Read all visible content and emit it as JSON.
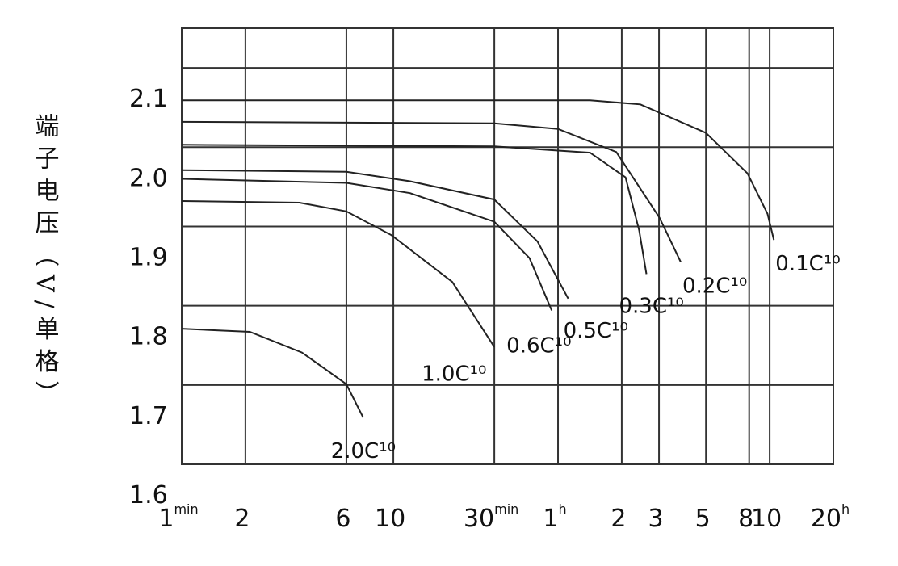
{
  "chart_data": {
    "type": "line",
    "y_label": "端子电压（V/单格）",
    "xscale": "log",
    "xlim": [
      1,
      1200
    ],
    "xticks": [
      {
        "value": 1,
        "label": "1",
        "unit": "min"
      },
      2,
      6,
      10,
      {
        "value": 30,
        "label": "30",
        "unit": "min"
      },
      {
        "value": 60,
        "label": "1",
        "unit": "h"
      },
      {
        "value": 120,
        "label": "2"
      },
      {
        "value": 180,
        "label": "3"
      },
      {
        "value": 300,
        "label": "5"
      },
      {
        "value": 480,
        "label": "8"
      },
      {
        "value": 600,
        "label": "10"
      },
      {
        "value": 1200,
        "label": "20",
        "unit": "h"
      }
    ],
    "ylim": [
      1.6,
      2.15
    ],
    "yticks": [
      1.6,
      1.7,
      1.8,
      1.9,
      {
        "value": 2,
        "label": "2.0"
      },
      2.1
    ],
    "grid": true,
    "series": [
      {
        "name": "2.0C¹⁰",
        "color": "#222222",
        "x": [
          1,
          2.1,
          3.7,
          6,
          7.2
        ],
        "values": [
          1.771,
          1.767,
          1.741,
          1.701,
          1.659
        ]
      },
      {
        "name": "1.0C¹⁰",
        "color": "#222222",
        "x": [
          1,
          3.6,
          6,
          9.8,
          19,
          30
        ],
        "values": [
          1.932,
          1.93,
          1.919,
          1.889,
          1.83,
          1.748
        ]
      },
      {
        "name": "0.6C¹⁰",
        "color": "#222222",
        "x": [
          1,
          6,
          12,
          30,
          44,
          56
        ],
        "values": [
          1.96,
          1.955,
          1.942,
          1.906,
          1.86,
          1.794
        ]
      },
      {
        "name": "0.5C¹⁰",
        "color": "#222222",
        "x": [
          1,
          6,
          12,
          30,
          48,
          67
        ],
        "values": [
          1.971,
          1.969,
          1.957,
          1.934,
          1.881,
          1.809
        ]
      },
      {
        "name": "0.3C¹⁰",
        "color": "#222222",
        "x": [
          1,
          30,
          85,
          125,
          145,
          157
        ],
        "values": [
          2.003,
          2.001,
          1.993,
          1.962,
          1.895,
          1.84
        ]
      },
      {
        "name": "0.2C¹⁰",
        "color": "#222222",
        "x": [
          1,
          30,
          60,
          113,
          181,
          228
        ],
        "values": [
          2.032,
          2.03,
          2.023,
          1.994,
          1.911,
          1.855
        ]
      },
      {
        "name": "0.1C¹⁰",
        "color": "#222222",
        "x": [
          1,
          85,
          147,
          300,
          471,
          586,
          628
        ],
        "values": [
          2.059,
          2.059,
          2.054,
          2.018,
          1.967,
          1.916,
          1.883
        ]
      }
    ]
  }
}
